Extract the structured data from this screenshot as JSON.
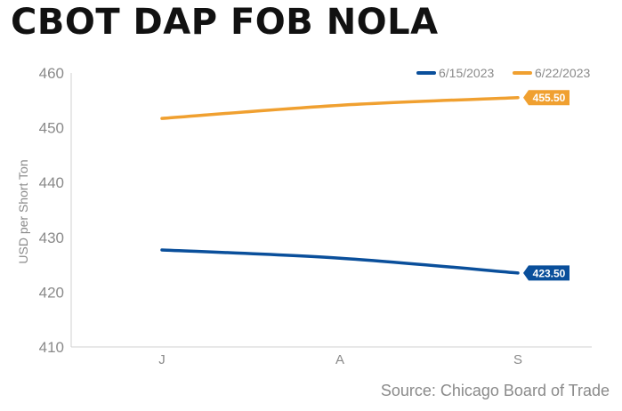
{
  "title": "CBOT DAP FOB NOLA",
  "source": "Source: Chicago Board of Trade",
  "chart_data": {
    "type": "line",
    "title": "CBOT DAP FOB NOLA",
    "xlabel": "",
    "ylabel": "USD per Short Ton",
    "categories": [
      "J",
      "A",
      "S"
    ],
    "ylim": [
      410,
      460
    ],
    "yticks": [
      410,
      420,
      430,
      440,
      450,
      460
    ],
    "grid": false,
    "legend_position": "top-right",
    "series": [
      {
        "name": "6/15/2023",
        "color": "#0a4f9b",
        "values": [
          427.7,
          426.2,
          423.5
        ],
        "end_label": "423.50"
      },
      {
        "name": "6/22/2023",
        "color": "#f0a030",
        "values": [
          451.7,
          454.1,
          455.5
        ],
        "end_label": "455.50"
      }
    ]
  }
}
